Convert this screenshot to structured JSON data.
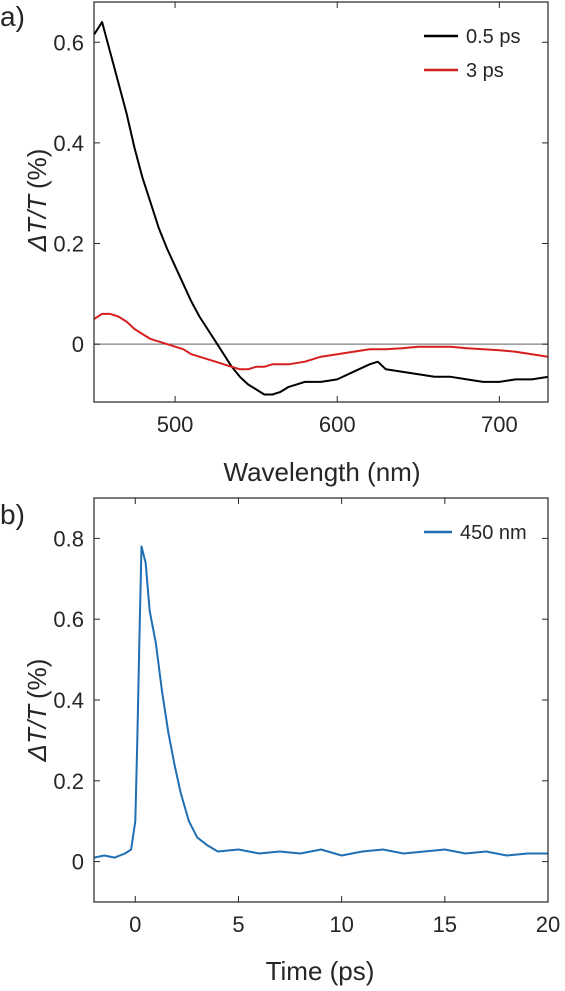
{
  "panel_labels": [
    "a)",
    "b)"
  ],
  "chart_data": [
    {
      "type": "line",
      "xlabel": "Wavelength (nm)",
      "ylabel_prefix": "ΔT/T",
      "ylabel_unit": "(%)",
      "xlim": [
        450,
        730
      ],
      "ylim": [
        -0.115,
        0.68
      ],
      "x_ticks": [
        500,
        600,
        700
      ],
      "y_ticks": [
        0,
        0.2,
        0.4,
        0.6
      ],
      "zero_line": true,
      "legend_position": "top-right",
      "series": [
        {
          "name": "0.5 ps",
          "color": "#000000",
          "x": [
            450,
            455,
            460,
            465,
            470,
            475,
            480,
            485,
            490,
            495,
            500,
            505,
            510,
            515,
            520,
            525,
            530,
            535,
            540,
            545,
            550,
            555,
            560,
            565,
            570,
            575,
            580,
            590,
            600,
            610,
            620,
            625,
            630,
            640,
            650,
            660,
            670,
            680,
            690,
            700,
            710,
            720,
            730
          ],
          "y": [
            0.615,
            0.64,
            0.58,
            0.52,
            0.46,
            0.39,
            0.33,
            0.28,
            0.23,
            0.19,
            0.155,
            0.12,
            0.085,
            0.055,
            0.03,
            0.005,
            -0.02,
            -0.045,
            -0.065,
            -0.08,
            -0.09,
            -0.1,
            -0.1,
            -0.095,
            -0.085,
            -0.08,
            -0.075,
            -0.075,
            -0.07,
            -0.055,
            -0.04,
            -0.035,
            -0.05,
            -0.055,
            -0.06,
            -0.065,
            -0.065,
            -0.07,
            -0.075,
            -0.075,
            -0.07,
            -0.07,
            -0.065
          ]
        },
        {
          "name": "3 ps",
          "color": "#d62020",
          "x": [
            450,
            455,
            460,
            465,
            470,
            475,
            480,
            485,
            490,
            495,
            500,
            505,
            510,
            515,
            520,
            525,
            530,
            535,
            540,
            545,
            550,
            555,
            560,
            570,
            580,
            590,
            600,
            610,
            620,
            630,
            640,
            650,
            660,
            670,
            680,
            690,
            700,
            710,
            720,
            730
          ],
          "y": [
            0.05,
            0.06,
            0.06,
            0.055,
            0.045,
            0.03,
            0.02,
            0.01,
            0.005,
            0.0,
            -0.005,
            -0.01,
            -0.02,
            -0.025,
            -0.03,
            -0.035,
            -0.04,
            -0.045,
            -0.05,
            -0.05,
            -0.045,
            -0.045,
            -0.04,
            -0.04,
            -0.035,
            -0.025,
            -0.02,
            -0.015,
            -0.01,
            -0.01,
            -0.008,
            -0.005,
            -0.005,
            -0.005,
            -0.008,
            -0.01,
            -0.012,
            -0.015,
            -0.02,
            -0.025
          ]
        }
      ]
    },
    {
      "type": "line",
      "xlabel": "Time (ps)",
      "ylabel_prefix": "ΔT/T",
      "ylabel_unit": "(%)",
      "xlim": [
        -2,
        20
      ],
      "ylim": [
        -0.1,
        0.9
      ],
      "x_ticks": [
        0,
        5,
        10,
        15,
        20
      ],
      "y_ticks": [
        0,
        0.2,
        0.4,
        0.6,
        0.8
      ],
      "legend_position": "top-right",
      "series": [
        {
          "name": "450 nm",
          "color": "#1f6fb2",
          "x": [
            -2,
            -1.5,
            -1,
            -0.5,
            -0.2,
            0,
            0.1,
            0.2,
            0.3,
            0.5,
            0.7,
            1.0,
            1.3,
            1.6,
            1.9,
            2.2,
            2.6,
            3.0,
            3.5,
            4.0,
            5,
            6,
            7,
            8,
            9,
            10,
            11,
            12,
            13,
            14,
            15,
            16,
            17,
            18,
            19,
            20
          ],
          "y": [
            0.01,
            0.015,
            0.01,
            0.02,
            0.03,
            0.1,
            0.3,
            0.55,
            0.78,
            0.74,
            0.62,
            0.54,
            0.42,
            0.32,
            0.24,
            0.17,
            0.1,
            0.06,
            0.04,
            0.025,
            0.03,
            0.02,
            0.025,
            0.02,
            0.03,
            0.015,
            0.025,
            0.03,
            0.02,
            0.025,
            0.03,
            0.02,
            0.025,
            0.015,
            0.02,
            0.02
          ]
        }
      ]
    }
  ]
}
